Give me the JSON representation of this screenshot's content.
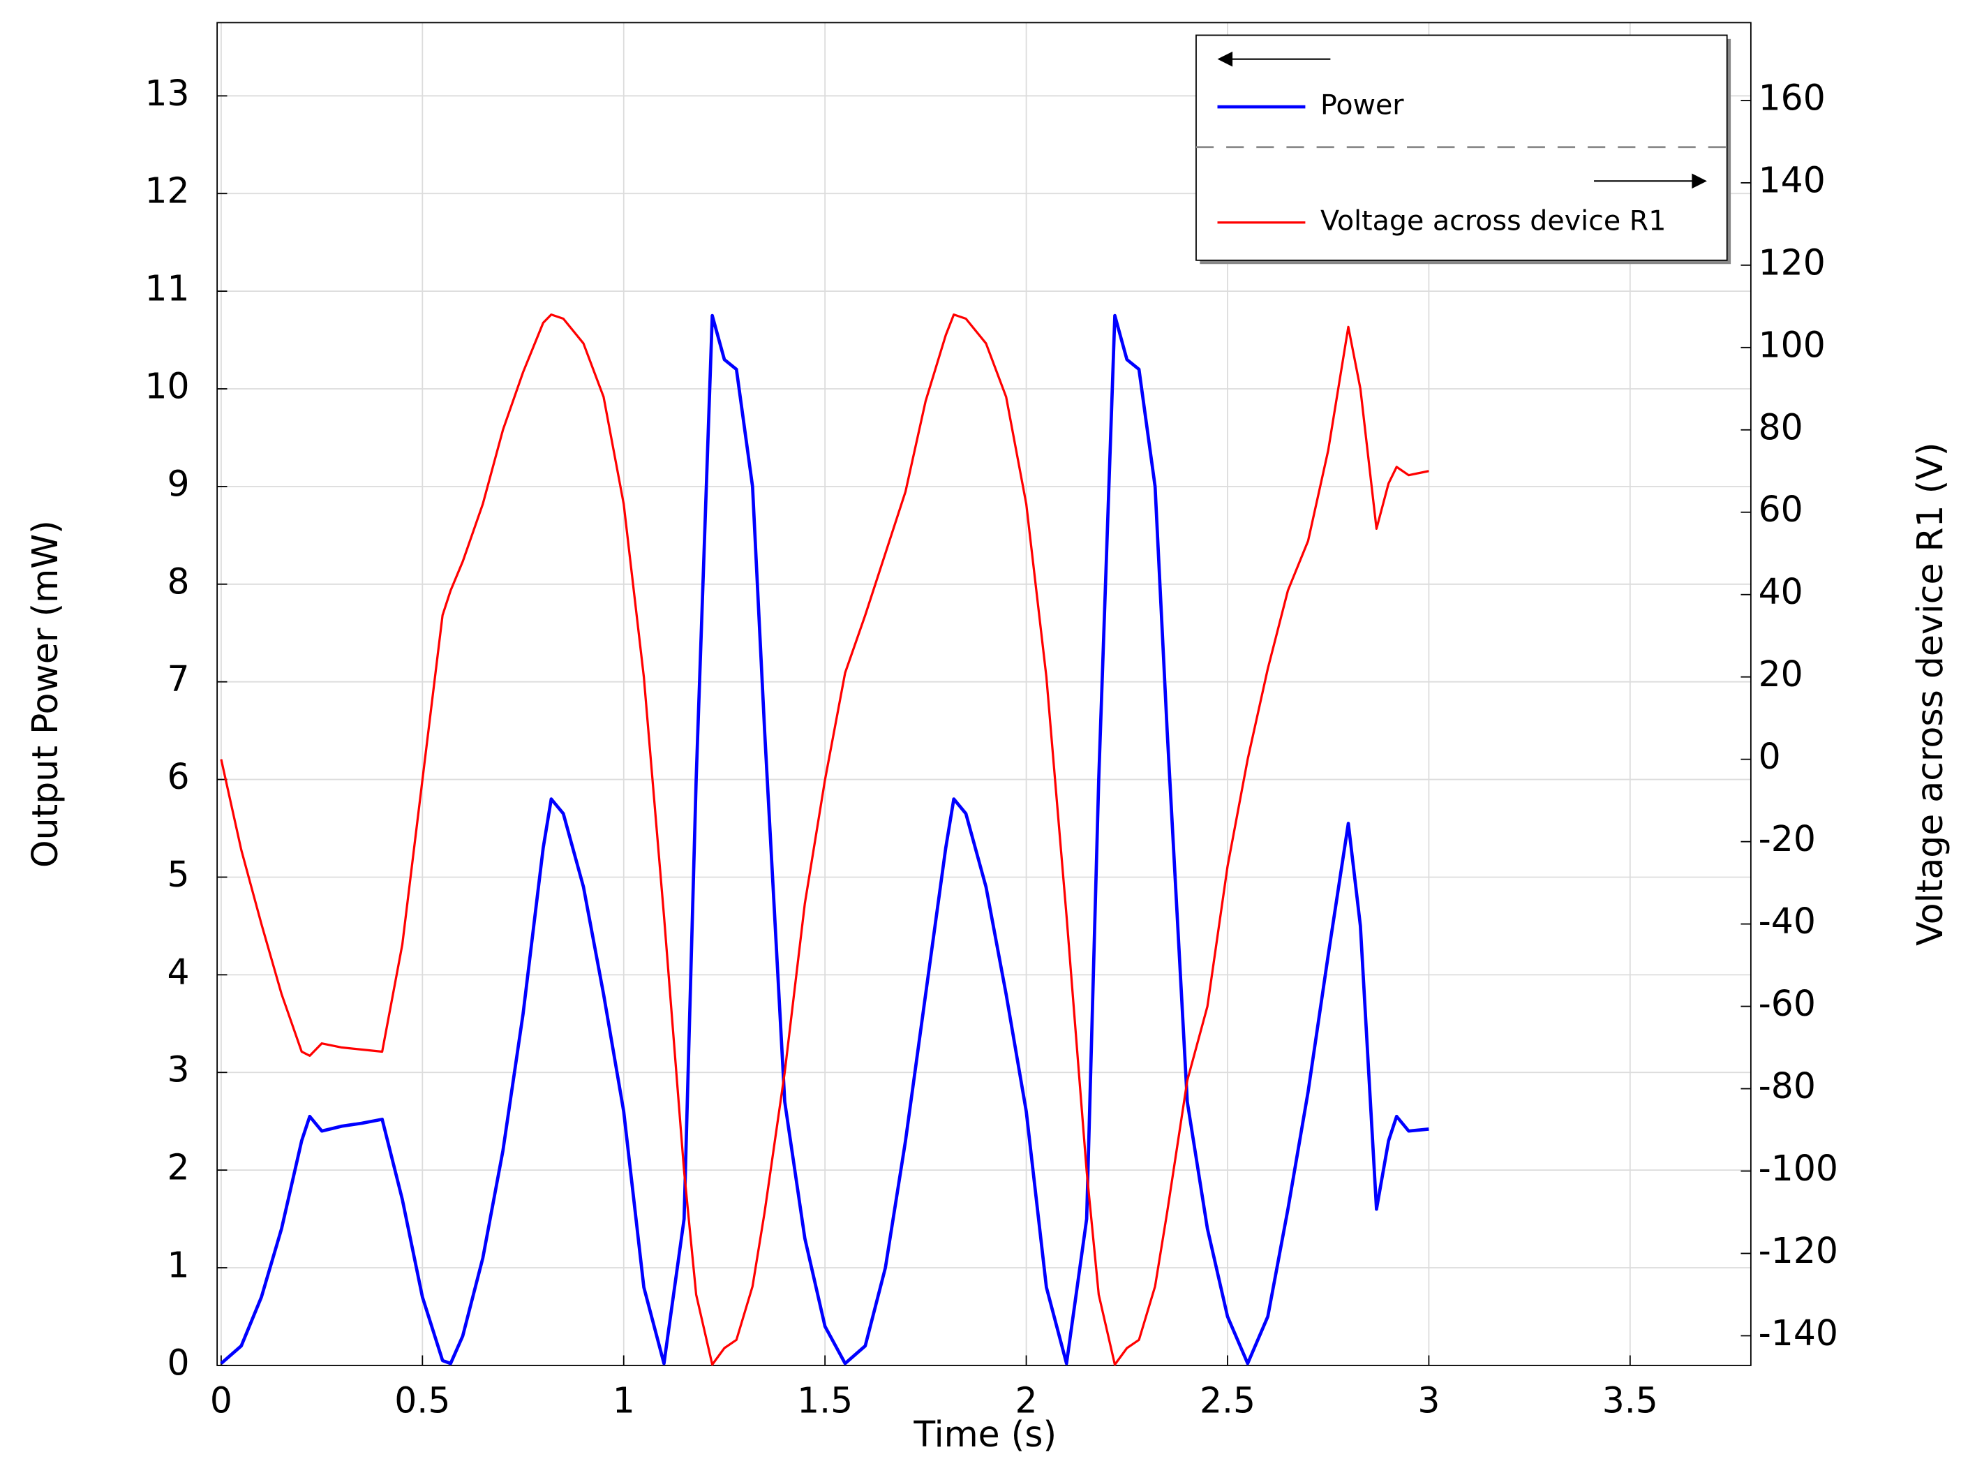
{
  "chart_data": {
    "type": "line",
    "xlabel": "Time (s)",
    "ylabel": "Output Power (mW)",
    "y2label": "Voltage across device R1 (V)",
    "x": [
      0,
      0.05,
      0.1,
      0.15,
      0.2,
      0.22,
      0.25,
      0.3,
      0.35,
      0.4,
      0.45,
      0.5,
      0.55,
      0.57,
      0.6,
      0.65,
      0.7,
      0.75,
      0.8,
      0.82,
      0.85,
      0.9,
      0.95,
      1.0,
      1.05,
      1.1,
      1.15,
      1.18,
      1.22,
      1.25,
      1.28,
      1.32,
      1.35,
      1.4,
      1.45,
      1.5,
      1.55,
      1.6,
      1.65,
      1.7,
      1.75,
      1.8,
      1.82,
      1.85,
      1.9,
      1.95,
      2.0,
      2.05,
      2.1,
      2.15,
      2.18,
      2.22,
      2.25,
      2.28,
      2.32,
      2.35,
      2.4,
      2.45,
      2.5,
      2.55,
      2.6,
      2.65,
      2.7,
      2.75,
      2.8,
      2.83,
      2.87,
      2.9,
      2.92,
      2.95,
      3.0
    ],
    "series": [
      {
        "name": "Power",
        "color": "#0000ff",
        "axis": "y",
        "values": [
          0.02,
          0.2,
          0.7,
          1.4,
          2.3,
          2.55,
          2.4,
          2.45,
          2.48,
          2.52,
          1.7,
          0.7,
          0.05,
          0.02,
          0.3,
          1.1,
          2.2,
          3.6,
          5.3,
          5.8,
          5.65,
          4.9,
          3.8,
          2.6,
          0.8,
          0.02,
          1.5,
          6,
          10.75,
          10.3,
          10.2,
          9.0,
          6.5,
          2.7,
          1.3,
          0.4,
          0.02,
          0.2,
          1.0,
          2.3,
          3.8,
          5.3,
          5.8,
          5.65,
          4.9,
          3.8,
          2.6,
          0.8,
          0.02,
          1.5,
          6,
          10.75,
          10.3,
          10.2,
          9.0,
          6.5,
          2.7,
          1.4,
          0.5,
          0.02,
          0.5,
          1.6,
          2.8,
          4.2,
          5.55,
          4.5,
          1.6,
          2.3,
          2.55,
          2.4,
          2.42
        ]
      },
      {
        "name": "Voltage across device R1",
        "color": "#ff0000",
        "axis": "y2",
        "values": [
          0,
          -22,
          -40,
          -57,
          -71,
          -72,
          -69,
          -70,
          -70.5,
          -71,
          -45,
          -5,
          35,
          41,
          48,
          62,
          80,
          94,
          106,
          108,
          107,
          101,
          88,
          62,
          20,
          -38,
          -100,
          -130,
          -147,
          -143,
          -141,
          -128,
          -110,
          -76,
          -35,
          -5,
          21,
          35,
          50,
          65,
          87,
          103,
          108,
          107,
          101,
          88,
          62,
          20,
          -38,
          -100,
          -130,
          -147,
          -143,
          -141,
          -128,
          -110,
          -78,
          -60,
          -26,
          0,
          22,
          41,
          53,
          75,
          105,
          90,
          56,
          67,
          71,
          69,
          70
        ]
      }
    ],
    "xlim": [
      -0.01,
      3.8
    ],
    "xticks": [
      0,
      0.5,
      1,
      1.5,
      2,
      2.5,
      3,
      3.5
    ],
    "ylim": [
      0,
      13.75
    ],
    "yticks": [
      0,
      1,
      2,
      3,
      4,
      5,
      6,
      7,
      8,
      9,
      10,
      11,
      12,
      13
    ],
    "y2lim": [
      -147.2,
      178.9
    ],
    "y2ticks": [
      -140,
      -120,
      -100,
      -80,
      -60,
      -40,
      -20,
      0,
      20,
      40,
      60,
      80,
      100,
      120,
      140,
      160
    ],
    "grid": true,
    "legend": "upper right"
  }
}
